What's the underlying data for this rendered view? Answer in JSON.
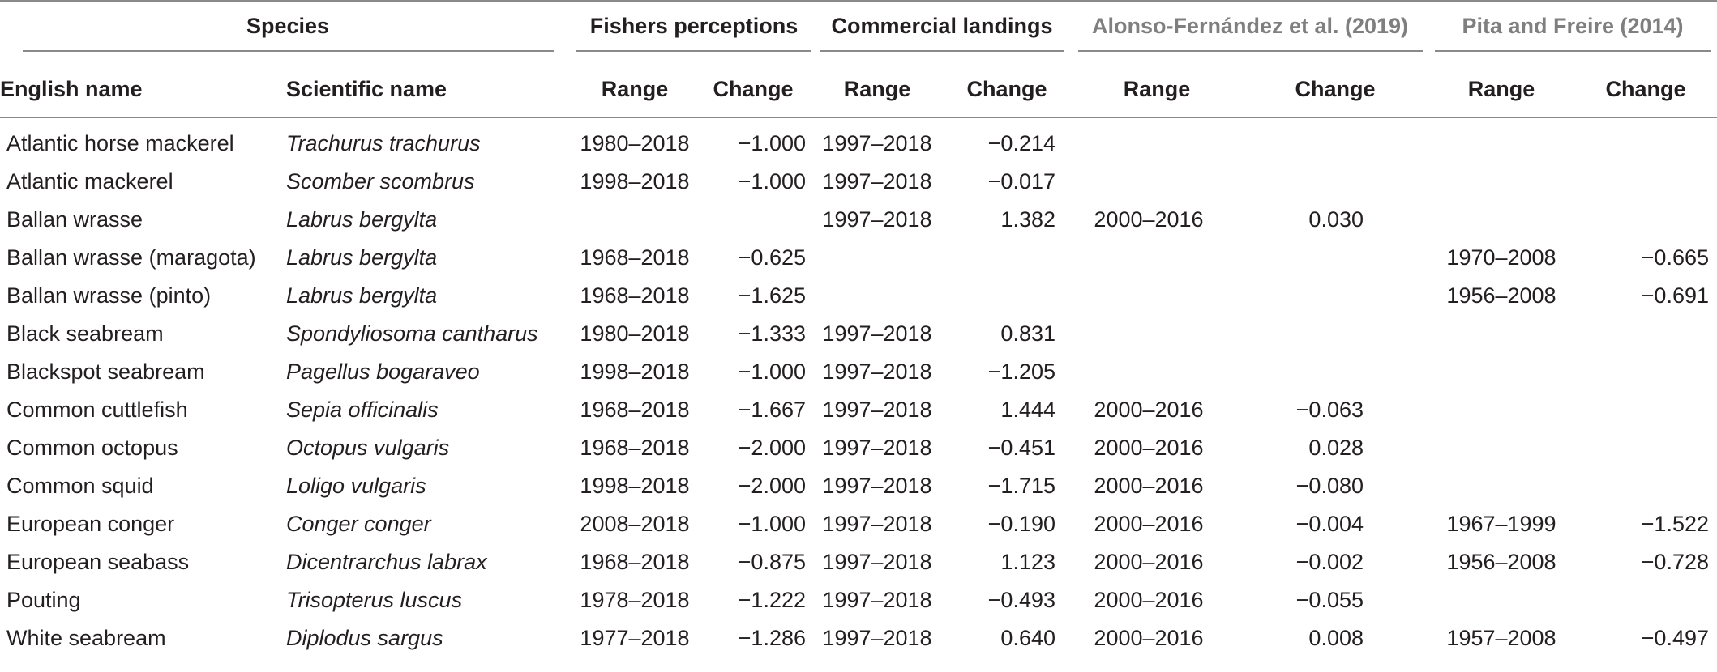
{
  "group_headers": {
    "species": "Species",
    "fishers": "Fishers perceptions",
    "commercial": "Commercial landings",
    "alonso": "Alonso-Fernández et al. (2019)",
    "pita": "Pita and Freire (2014)"
  },
  "column_headers": {
    "english": "English name",
    "scientific": "Scientific name",
    "fishers_range": "Range",
    "fishers_change": "Change",
    "commercial_range": "Range",
    "commercial_change": "Change",
    "alonso_range": "Range",
    "alonso_change": "Change",
    "pita_range": "Range",
    "pita_change": "Change"
  },
  "rows": [
    {
      "english": "Atlantic horse mackerel",
      "scientific": "Trachurus trachurus",
      "f_range": "1980–2018",
      "f_change": "−1.000",
      "c_range": "1997–2018",
      "c_change": "−0.214",
      "a_range": "",
      "a_change": "",
      "p_range": "",
      "p_change": ""
    },
    {
      "english": "Atlantic mackerel",
      "scientific": "Scomber scombrus",
      "f_range": "1998–2018",
      "f_change": "−1.000",
      "c_range": "1997–2018",
      "c_change": "−0.017",
      "a_range": "",
      "a_change": "",
      "p_range": "",
      "p_change": ""
    },
    {
      "english": "Ballan wrasse",
      "scientific": "Labrus bergylta",
      "f_range": "",
      "f_change": "",
      "c_range": "1997–2018",
      "c_change": "1.382",
      "a_range": "2000–2016",
      "a_change": "0.030",
      "p_range": "",
      "p_change": ""
    },
    {
      "english": "Ballan wrasse (maragota)",
      "scientific": "Labrus bergylta",
      "f_range": "1968–2018",
      "f_change": "−0.625",
      "c_range": "",
      "c_change": "",
      "a_range": "",
      "a_change": "",
      "p_range": "1970–2008",
      "p_change": "−0.665"
    },
    {
      "english": "Ballan wrasse (pinto)",
      "scientific": "Labrus bergylta",
      "f_range": "1968–2018",
      "f_change": "−1.625",
      "c_range": "",
      "c_change": "",
      "a_range": "",
      "a_change": "",
      "p_range": "1956–2008",
      "p_change": "−0.691"
    },
    {
      "english": "Black seabream",
      "scientific": "Spondyliosoma cantharus",
      "f_range": "1980–2018",
      "f_change": "−1.333",
      "c_range": "1997–2018",
      "c_change": "0.831",
      "a_range": "",
      "a_change": "",
      "p_range": "",
      "p_change": ""
    },
    {
      "english": "Blackspot seabream",
      "scientific": "Pagellus bogaraveo",
      "f_range": "1998–2018",
      "f_change": "−1.000",
      "c_range": "1997–2018",
      "c_change": "−1.205",
      "a_range": "",
      "a_change": "",
      "p_range": "",
      "p_change": ""
    },
    {
      "english": "Common cuttlefish",
      "scientific": "Sepia officinalis",
      "f_range": "1968–2018",
      "f_change": "−1.667",
      "c_range": "1997–2018",
      "c_change": "1.444",
      "a_range": "2000–2016",
      "a_change": "−0.063",
      "p_range": "",
      "p_change": ""
    },
    {
      "english": "Common octopus",
      "scientific": "Octopus vulgaris",
      "f_range": "1968–2018",
      "f_change": "−2.000",
      "c_range": "1997–2018",
      "c_change": "−0.451",
      "a_range": "2000–2016",
      "a_change": "0.028",
      "p_range": "",
      "p_change": ""
    },
    {
      "english": "Common squid",
      "scientific": "Loligo vulgaris",
      "f_range": "1998–2018",
      "f_change": "−2.000",
      "c_range": "1997–2018",
      "c_change": "−1.715",
      "a_range": "2000–2016",
      "a_change": "−0.080",
      "p_range": "",
      "p_change": ""
    },
    {
      "english": "European conger",
      "scientific": "Conger conger",
      "f_range": "2008–2018",
      "f_change": "−1.000",
      "c_range": "1997–2018",
      "c_change": "−0.190",
      "a_range": "2000–2016",
      "a_change": "−0.004",
      "p_range": "1967–1999",
      "p_change": "−1.522"
    },
    {
      "english": "European seabass",
      "scientific": "Dicentrarchus labrax",
      "f_range": "1968–2018",
      "f_change": "−0.875",
      "c_range": "1997–2018",
      "c_change": "1.123",
      "a_range": "2000–2016",
      "a_change": "−0.002",
      "p_range": "1956–2008",
      "p_change": "−0.728"
    },
    {
      "english": "Pouting",
      "scientific": "Trisopterus luscus",
      "f_range": "1978–2018",
      "f_change": "−1.222",
      "c_range": "1997–2018",
      "c_change": "−0.493",
      "a_range": "2000–2016",
      "a_change": "−0.055",
      "p_range": "",
      "p_change": ""
    },
    {
      "english": "White seabream",
      "scientific": "Diplodus sargus",
      "f_range": "1977–2018",
      "f_change": "−1.286",
      "c_range": "1997–2018",
      "c_change": "0.640",
      "a_range": "2000–2016",
      "a_change": "0.008",
      "p_range": "1957–2008",
      "p_change": "−0.497"
    }
  ]
}
